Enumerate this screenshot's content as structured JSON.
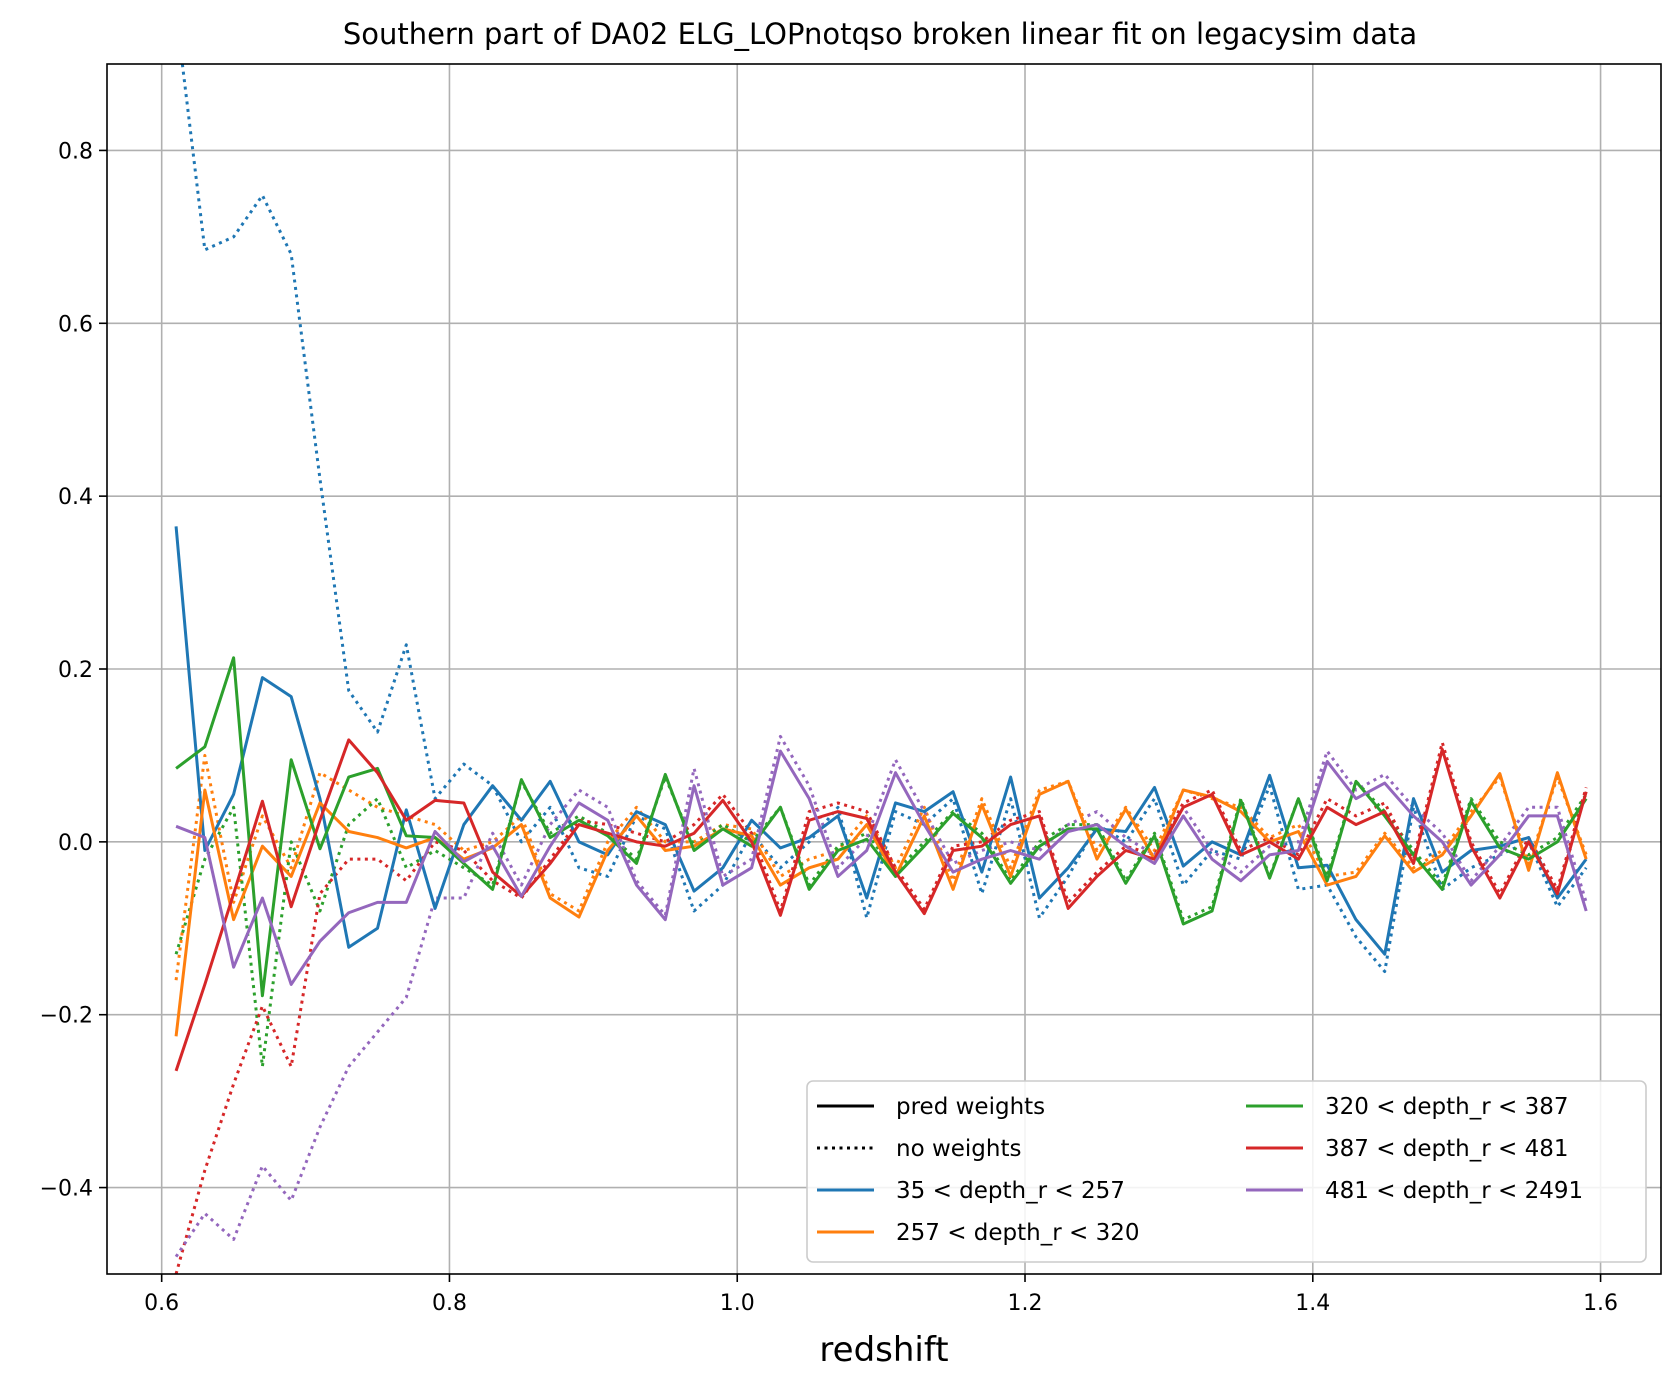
{
  "chart_data": {
    "type": "line",
    "title": "Southern part of DA02 ELG_LOPnotqso broken linear fit on legacysim data",
    "xlabel": "redshift",
    "ylabel": "",
    "xlim": [
      0.562,
      1.642
    ],
    "ylim": [
      -0.5,
      0.9
    ],
    "xticks": [
      0.6,
      0.8,
      1.0,
      1.2,
      1.4,
      1.6
    ],
    "xtick_labels": [
      "0.6",
      "0.8",
      "1.0",
      "1.2",
      "1.4",
      "1.6"
    ],
    "yticks": [
      -0.4,
      -0.2,
      0.0,
      0.2,
      0.4,
      0.6,
      0.8
    ],
    "ytick_labels": [
      "−0.4",
      "−0.2",
      "0.0",
      "0.2",
      "0.4",
      "0.6",
      "0.8"
    ],
    "grid": true,
    "legend": {
      "placement": "lower-right",
      "columns": 2,
      "style_entries": [
        {
          "label": "pred weights",
          "dash": "solid",
          "color": "#000000"
        },
        {
          "label": "no weights",
          "dash": "dotted",
          "color": "#000000"
        }
      ]
    },
    "x": [
      0.61,
      0.63,
      0.65,
      0.67,
      0.69,
      0.71,
      0.73,
      0.75,
      0.77,
      0.79,
      0.81,
      0.83,
      0.85,
      0.87,
      0.89,
      0.91,
      0.93,
      0.95,
      0.97,
      0.99,
      1.01,
      1.03,
      1.05,
      1.07,
      1.09,
      1.11,
      1.13,
      1.15,
      1.17,
      1.19,
      1.21,
      1.23,
      1.25,
      1.27,
      1.29,
      1.31,
      1.33,
      1.35,
      1.37,
      1.39,
      1.41,
      1.43,
      1.45,
      1.47,
      1.49,
      1.51,
      1.53,
      1.55,
      1.57,
      1.59
    ],
    "series": [
      {
        "name": "35 < depth_r < 257",
        "color": "#1f77b4",
        "pred": [
          0.365,
          -0.01,
          0.055,
          0.19,
          0.168,
          0.05,
          -0.122,
          -0.1,
          0.037,
          -0.077,
          0.02,
          0.065,
          0.025,
          0.07,
          0.0,
          -0.015,
          0.035,
          0.02,
          -0.057,
          -0.03,
          0.025,
          -0.007,
          0.005,
          0.03,
          -0.065,
          0.045,
          0.035,
          0.058,
          -0.035,
          0.075,
          -0.065,
          -0.03,
          0.015,
          0.012,
          0.063,
          -0.028,
          0.0,
          -0.015,
          0.077,
          -0.03,
          -0.027,
          -0.09,
          -0.13,
          0.05,
          -0.035,
          -0.01,
          -0.005,
          0.005,
          -0.065,
          -0.02
        ],
        "none": [
          0.96,
          0.685,
          0.7,
          0.748,
          0.68,
          0.42,
          0.175,
          0.127,
          0.228,
          0.05,
          0.09,
          0.065,
          0.0,
          0.04,
          -0.03,
          -0.04,
          0.03,
          0.015,
          -0.08,
          -0.05,
          0.01,
          -0.03,
          0.0,
          0.04,
          -0.088,
          0.035,
          0.02,
          0.05,
          -0.06,
          0.05,
          -0.088,
          -0.04,
          0.02,
          0.0,
          0.05,
          -0.05,
          -0.01,
          -0.02,
          0.065,
          -0.055,
          -0.05,
          -0.11,
          -0.15,
          0.04,
          -0.055,
          -0.03,
          -0.015,
          0.0,
          -0.075,
          -0.03
        ]
      },
      {
        "name": "257 < depth_r < 320",
        "color": "#ff7f0e",
        "pred": [
          -0.225,
          0.06,
          -0.09,
          -0.005,
          -0.04,
          0.045,
          0.012,
          0.005,
          -0.007,
          0.005,
          -0.02,
          -0.007,
          0.02,
          -0.065,
          -0.087,
          -0.01,
          0.03,
          -0.01,
          -0.005,
          0.015,
          0.007,
          -0.05,
          -0.03,
          -0.02,
          0.02,
          -0.04,
          0.03,
          -0.055,
          0.043,
          -0.04,
          0.055,
          0.07,
          -0.02,
          0.038,
          -0.02,
          0.06,
          0.052,
          0.035,
          0.0,
          0.012,
          -0.05,
          -0.04,
          0.007,
          -0.035,
          -0.015,
          0.03,
          0.079,
          -0.033,
          0.08,
          -0.02
        ],
        "none": [
          -0.16,
          0.1,
          -0.07,
          0.03,
          -0.03,
          0.08,
          0.06,
          0.04,
          0.03,
          0.02,
          -0.01,
          0.0,
          0.03,
          -0.06,
          -0.08,
          0.0,
          0.04,
          0.0,
          0.0,
          0.02,
          0.015,
          -0.04,
          -0.02,
          -0.01,
          0.03,
          -0.03,
          0.04,
          -0.045,
          0.05,
          -0.03,
          0.06,
          0.07,
          -0.01,
          0.04,
          -0.01,
          0.06,
          0.05,
          0.04,
          0.005,
          0.02,
          -0.04,
          -0.035,
          0.01,
          -0.03,
          -0.01,
          0.035,
          0.075,
          -0.025,
          0.075,
          -0.015
        ]
      },
      {
        "name": "320 < depth_r < 387",
        "color": "#2ca02c",
        "pred": [
          0.085,
          0.11,
          0.213,
          -0.178,
          0.095,
          -0.008,
          0.075,
          0.085,
          0.007,
          0.005,
          -0.025,
          -0.055,
          0.072,
          0.005,
          0.025,
          0.007,
          -0.025,
          0.078,
          -0.01,
          0.015,
          -0.005,
          0.04,
          -0.055,
          -0.01,
          0.003,
          -0.04,
          -0.005,
          0.033,
          0.005,
          -0.048,
          -0.005,
          0.015,
          0.015,
          -0.048,
          0.007,
          -0.095,
          -0.08,
          0.048,
          -0.042,
          0.05,
          -0.045,
          0.07,
          0.03,
          -0.015,
          -0.055,
          0.047,
          -0.007,
          -0.02,
          0.0,
          0.05
        ],
        "none": [
          -0.13,
          -0.02,
          0.04,
          -0.26,
          0.0,
          -0.08,
          0.02,
          0.05,
          -0.03,
          -0.01,
          -0.03,
          -0.05,
          0.07,
          0.01,
          0.03,
          0.01,
          -0.02,
          0.075,
          -0.005,
          0.02,
          0.0,
          0.04,
          -0.05,
          -0.005,
          0.01,
          -0.035,
          0.0,
          0.035,
          0.01,
          -0.045,
          0.0,
          0.02,
          0.02,
          -0.045,
          0.01,
          -0.09,
          -0.075,
          0.05,
          -0.04,
          0.05,
          -0.04,
          0.07,
          0.035,
          -0.01,
          -0.05,
          0.05,
          0.0,
          -0.015,
          0.005,
          0.055
        ]
      },
      {
        "name": "387 < depth_r < 481",
        "color": "#d62728",
        "pred": [
          -0.265,
          -0.165,
          -0.06,
          0.047,
          -0.075,
          0.025,
          0.118,
          0.08,
          0.025,
          0.048,
          0.045,
          -0.035,
          -0.063,
          -0.025,
          0.02,
          0.01,
          0.0,
          -0.005,
          0.01,
          0.048,
          0.0,
          -0.085,
          0.025,
          0.035,
          0.027,
          -0.035,
          -0.083,
          -0.01,
          -0.005,
          0.02,
          0.03,
          -0.077,
          -0.04,
          -0.01,
          -0.02,
          0.04,
          0.055,
          -0.015,
          0.0,
          -0.02,
          0.04,
          0.02,
          0.035,
          -0.025,
          0.107,
          -0.005,
          -0.065,
          0.0,
          -0.06,
          0.058
        ],
        "none": [
          -0.5,
          -0.38,
          -0.28,
          -0.19,
          -0.26,
          -0.06,
          -0.02,
          -0.02,
          -0.045,
          0.0,
          -0.01,
          -0.045,
          -0.065,
          -0.02,
          0.025,
          0.02,
          0.01,
          0.0,
          0.02,
          0.055,
          0.01,
          -0.08,
          0.035,
          0.045,
          0.035,
          -0.03,
          -0.078,
          -0.005,
          0.0,
          0.025,
          0.035,
          -0.07,
          -0.035,
          -0.005,
          -0.015,
          0.045,
          0.06,
          -0.01,
          0.005,
          -0.015,
          0.05,
          0.03,
          0.045,
          -0.02,
          0.115,
          0.0,
          -0.06,
          0.005,
          -0.055,
          0.063
        ]
      },
      {
        "name": "481 < depth_r < 2491",
        "color": "#9467bd",
        "pred": [
          0.018,
          0.005,
          -0.145,
          -0.065,
          -0.165,
          -0.115,
          -0.082,
          -0.07,
          -0.07,
          0.012,
          -0.023,
          -0.005,
          -0.063,
          -0.005,
          0.045,
          0.025,
          -0.05,
          -0.09,
          0.065,
          -0.05,
          -0.03,
          0.105,
          0.05,
          -0.04,
          -0.01,
          0.08,
          0.02,
          -0.035,
          -0.02,
          -0.01,
          -0.02,
          0.012,
          0.02,
          -0.005,
          -0.025,
          0.03,
          -0.02,
          -0.045,
          -0.015,
          -0.01,
          0.093,
          0.05,
          0.068,
          0.03,
          0.0,
          -0.05,
          -0.015,
          0.03,
          0.03,
          -0.08
        ],
        "none": [
          -0.48,
          -0.43,
          -0.46,
          -0.375,
          -0.415,
          -0.33,
          -0.26,
          -0.22,
          -0.18,
          -0.065,
          -0.065,
          0.01,
          -0.05,
          0.02,
          0.06,
          0.04,
          -0.045,
          -0.085,
          0.085,
          -0.04,
          -0.02,
          0.122,
          0.065,
          -0.03,
          0.005,
          0.095,
          0.035,
          -0.025,
          -0.01,
          0.0,
          -0.01,
          0.02,
          0.035,
          0.005,
          -0.015,
          0.04,
          -0.01,
          -0.035,
          -0.005,
          0.0,
          0.105,
          0.06,
          0.078,
          0.04,
          0.01,
          -0.045,
          -0.005,
          0.04,
          0.04,
          -0.07
        ]
      }
    ]
  }
}
